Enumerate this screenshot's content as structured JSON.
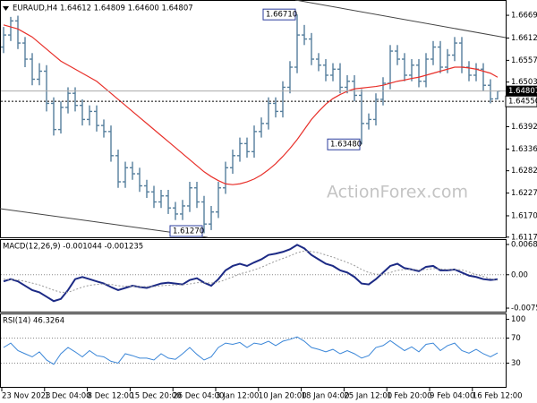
{
  "chart_data": [
    {
      "type": "ohlc",
      "title": "EURAUD,H4  1.64612 1.64809 1.64600 1.64807",
      "color": "#557e9c",
      "open": [
        1.659,
        1.662,
        1.6655,
        1.66,
        1.656,
        1.651,
        1.653,
        1.645,
        1.6385,
        1.644,
        1.6475,
        1.6445,
        1.641,
        1.643,
        1.6395,
        1.638,
        1.632,
        1.6255,
        1.629,
        1.6275,
        1.6245,
        1.623,
        1.6205,
        1.622,
        1.619,
        1.6175,
        1.6195,
        1.624,
        1.6205,
        1.615,
        1.618,
        1.624,
        1.629,
        1.632,
        1.635,
        1.633,
        1.638,
        1.64,
        1.645,
        1.643,
        1.649,
        1.654,
        1.662,
        1.661,
        1.656,
        1.6545,
        1.652,
        1.6535,
        1.649,
        1.6505,
        1.647,
        1.64,
        1.641,
        1.646,
        1.65,
        1.658,
        1.656,
        1.652,
        1.6545,
        1.6505,
        1.656,
        1.659,
        1.654,
        1.657,
        1.66,
        1.654,
        1.652,
        1.6535,
        1.6495,
        1.64612
      ],
      "high": [
        1.664,
        1.6665,
        1.6668,
        1.6615,
        1.6575,
        1.655,
        1.6545,
        1.6465,
        1.6455,
        1.649,
        1.649,
        1.646,
        1.6445,
        1.6445,
        1.641,
        1.6395,
        1.6335,
        1.6305,
        1.6305,
        1.629,
        1.626,
        1.6245,
        1.6235,
        1.6235,
        1.6205,
        1.621,
        1.6255,
        1.6255,
        1.622,
        1.6195,
        1.6255,
        1.6305,
        1.6335,
        1.6365,
        1.6365,
        1.6395,
        1.6415,
        1.6465,
        1.6465,
        1.6505,
        1.6555,
        1.6671,
        1.6645,
        1.6625,
        1.6575,
        1.656,
        1.655,
        1.655,
        1.652,
        1.652,
        1.6485,
        1.6425,
        1.6475,
        1.6515,
        1.6595,
        1.6595,
        1.6575,
        1.656,
        1.656,
        1.6575,
        1.6605,
        1.6605,
        1.6585,
        1.6615,
        1.6615,
        1.6555,
        1.655,
        1.655,
        1.651,
        1.64809
      ],
      "low": [
        1.6575,
        1.6605,
        1.6585,
        1.654,
        1.6495,
        1.6495,
        1.643,
        1.637,
        1.6375,
        1.6425,
        1.643,
        1.6395,
        1.6395,
        1.638,
        1.6365,
        1.6305,
        1.624,
        1.624,
        1.626,
        1.623,
        1.6215,
        1.619,
        1.619,
        1.6175,
        1.616,
        1.616,
        1.618,
        1.619,
        1.6127,
        1.6135,
        1.6165,
        1.6225,
        1.6275,
        1.6305,
        1.6315,
        1.6315,
        1.6365,
        1.6385,
        1.6415,
        1.6415,
        1.6475,
        1.6525,
        1.6595,
        1.6545,
        1.653,
        1.6505,
        1.6505,
        1.6475,
        1.6475,
        1.6455,
        1.6348,
        1.6385,
        1.6395,
        1.6445,
        1.6485,
        1.6545,
        1.6505,
        1.6505,
        1.649,
        1.649,
        1.6545,
        1.6525,
        1.6525,
        1.6555,
        1.6525,
        1.6505,
        1.6505,
        1.648,
        1.645,
        1.646
      ],
      "close": [
        1.662,
        1.6655,
        1.66,
        1.656,
        1.651,
        1.653,
        1.645,
        1.6385,
        1.644,
        1.6475,
        1.6445,
        1.641,
        1.643,
        1.6395,
        1.638,
        1.632,
        1.6255,
        1.629,
        1.6275,
        1.6245,
        1.623,
        1.6205,
        1.622,
        1.619,
        1.6175,
        1.6195,
        1.624,
        1.6205,
        1.615,
        1.618,
        1.624,
        1.629,
        1.632,
        1.635,
        1.633,
        1.638,
        1.64,
        1.645,
        1.643,
        1.649,
        1.654,
        1.662,
        1.661,
        1.656,
        1.6545,
        1.652,
        1.6535,
        1.649,
        1.6505,
        1.647,
        1.64,
        1.641,
        1.646,
        1.65,
        1.658,
        1.656,
        1.652,
        1.6545,
        1.6505,
        1.656,
        1.659,
        1.654,
        1.657,
        1.66,
        1.654,
        1.652,
        1.6535,
        1.6495,
        1.6461,
        1.64807
      ],
      "ma": {
        "color": "#e8302a",
        "values": [
          1.6645,
          1.664,
          1.6635,
          1.6625,
          1.6615,
          1.66,
          1.6585,
          1.657,
          1.6555,
          1.6545,
          1.6535,
          1.6525,
          1.6515,
          1.6505,
          1.649,
          1.6475,
          1.646,
          1.6445,
          1.643,
          1.6415,
          1.64,
          1.6385,
          1.637,
          1.6355,
          1.634,
          1.6325,
          1.631,
          1.6295,
          1.628,
          1.6268,
          1.6258,
          1.625,
          1.6248,
          1.625,
          1.6255,
          1.6262,
          1.6272,
          1.6285,
          1.63,
          1.6318,
          1.6338,
          1.636,
          1.6385,
          1.641,
          1.643,
          1.6448,
          1.6462,
          1.6472,
          1.648,
          1.6486,
          1.6488,
          1.649,
          1.6492,
          1.6495,
          1.65,
          1.6505,
          1.6508,
          1.6512,
          1.6515,
          1.652,
          1.6525,
          1.653,
          1.6535,
          1.654,
          1.654,
          1.6538,
          1.6535,
          1.653,
          1.6525,
          1.6515
        ]
      },
      "ylim": [
        1.6117,
        1.6707
      ],
      "yticks": [
        {
          "value": 1.6669,
          "label": "1.66690"
        },
        {
          "value": 1.66125,
          "label": "1.66125"
        },
        {
          "value": 1.6557,
          "label": "1.65570"
        },
        {
          "value": 1.6503,
          "label": "1.65030"
        },
        {
          "value": 1.6392,
          "label": "1.63920"
        },
        1.63365,
        1.62825,
        {
          "value": 1.6227,
          "label": "1.62270"
        },
        1.61705,
        1.61175
      ],
      "levels": [
        {
          "value": 1.6455,
          "label": "1.64550"
        }
      ],
      "last_price": {
        "value": 1.64807,
        "label": "1.64807"
      },
      "annotations": [
        {
          "value": 1.6671,
          "label": "1.66710"
        },
        {
          "value": 1.6127,
          "label": "1.61270"
        },
        {
          "value": 1.6348,
          "label": "1.63480"
        }
      ],
      "watermark": "ActionForex.com"
    },
    {
      "type": "line",
      "title": "MACD(12,26,9) -0.001044 -0.001235",
      "series": [
        {
          "color": "#1c2a85",
          "line_style": "solid",
          "values": [
            -0.0015,
            -0.001,
            -0.0015,
            -0.0025,
            -0.0035,
            -0.004,
            -0.005,
            -0.006,
            -0.0055,
            -0.0035,
            -0.001,
            -0.0005,
            -0.001,
            -0.0015,
            -0.002,
            -0.0028,
            -0.0035,
            -0.003,
            -0.0025,
            -0.0028,
            -0.003,
            -0.0025,
            -0.002,
            -0.0018,
            -0.002,
            -0.0022,
            -0.0012,
            -0.0008,
            -0.0018,
            -0.0025,
            -0.001,
            0.001,
            0.002,
            0.0025,
            0.002,
            0.0028,
            0.0035,
            0.0045,
            0.0048,
            0.0052,
            0.0058,
            0.0068,
            0.006,
            0.0045,
            0.0035,
            0.0025,
            0.002,
            0.001,
            0.0005,
            -0.0005,
            -0.002,
            -0.0022,
            -0.001,
            0.0005,
            0.002,
            0.0025,
            0.0015,
            0.0012,
            0.0008,
            0.0018,
            0.002,
            0.001,
            0.001,
            0.0012,
            0.0005,
            -0.0002,
            -0.0005,
            -0.001,
            -0.0012,
            -0.001044
          ]
        },
        {
          "color": "#9a9a9a",
          "line_style": "dotted",
          "values": [
            -0.001,
            -0.0011,
            -0.0012,
            -0.0015,
            -0.0019,
            -0.0023,
            -0.0029,
            -0.0035,
            -0.004,
            -0.004,
            -0.0034,
            -0.0028,
            -0.0024,
            -0.0022,
            -0.0021,
            -0.0022,
            -0.0025,
            -0.0026,
            -0.0026,
            -0.0027,
            -0.0027,
            -0.0027,
            -0.0025,
            -0.0024,
            -0.0023,
            -0.0023,
            -0.0021,
            -0.0018,
            -0.0018,
            -0.0019,
            -0.0017,
            -0.0011,
            -0.0005,
            0.0002,
            0.0006,
            0.0011,
            0.0017,
            0.0024,
            0.0031,
            0.0037,
            0.0043,
            0.005,
            0.0054,
            0.0053,
            0.005,
            0.0045,
            0.004,
            0.0034,
            0.0028,
            0.0021,
            0.0012,
            0.0005,
            0.0001,
            0.0001,
            0.0005,
            0.001,
            0.0012,
            0.0012,
            0.0011,
            0.0012,
            0.0014,
            0.0013,
            0.0012,
            0.0012,
            0.0011,
            0.0006,
            0.0001,
            -0.0004,
            -0.0009,
            -0.001235
          ]
        }
      ],
      "ylim": [
        -0.0086,
        0.0079
      ],
      "yticks": [
        0.006886,
        {
          "value": 0,
          "label": "0.00"
        },
        -0.007591
      ],
      "levels": [
        0
      ]
    },
    {
      "type": "line",
      "title": "RSI(14) 46.3264",
      "series": [
        {
          "color": "#3a86d8",
          "line_style": "solid",
          "values": [
            55,
            62,
            50,
            45,
            40,
            48,
            35,
            28,
            45,
            55,
            48,
            40,
            50,
            42,
            40,
            33,
            30,
            45,
            42,
            38,
            38,
            35,
            45,
            38,
            36,
            45,
            55,
            44,
            35,
            40,
            55,
            62,
            60,
            63,
            55,
            62,
            60,
            65,
            58,
            65,
            68,
            72,
            65,
            55,
            52,
            48,
            52,
            45,
            50,
            45,
            38,
            42,
            55,
            58,
            66,
            58,
            50,
            56,
            48,
            60,
            62,
            50,
            58,
            62,
            50,
            46,
            52,
            45,
            40,
            46.3264
          ]
        }
      ],
      "ylim": [
        -8,
        108
      ],
      "yticks": [
        100,
        70,
        30
      ],
      "levels": [
        70,
        30
      ],
      "x_labels": [
        "23 Nov 2023",
        "1 Dec 04:00",
        "8 Dec 12:00",
        "15 Dec 20:00",
        "26 Dec 04:00",
        "3 Jan 12:00",
        "10 Jan 20:00",
        "18 Jan 04:00",
        "25 Jan 12:00",
        "1 Feb 20:00",
        "9 Feb 04:00",
        "16 Feb 12:00"
      ]
    }
  ]
}
